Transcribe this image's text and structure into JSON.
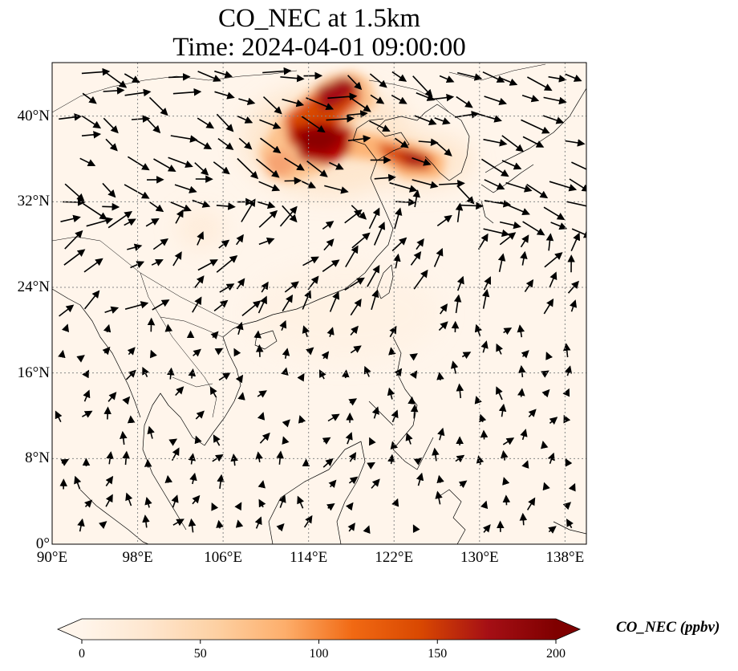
{
  "title": {
    "line1": "CO_NEC at 1.5km",
    "line2": "Time: 2024-04-01 09:00:00"
  },
  "map": {
    "lon_range": [
      90,
      140
    ],
    "lat_range": [
      0,
      45
    ],
    "lon_ticks": [
      {
        "value": 90,
        "label": "90°E"
      },
      {
        "value": 98,
        "label": "98°E"
      },
      {
        "value": 106,
        "label": "106°E"
      },
      {
        "value": 114,
        "label": "114°E"
      },
      {
        "value": 122,
        "label": "122°E"
      },
      {
        "value": 130,
        "label": "130°E"
      },
      {
        "value": 138,
        "label": "138°E"
      }
    ],
    "lat_ticks": [
      {
        "value": 0,
        "label": "0°"
      },
      {
        "value": 8,
        "label": "8°N"
      },
      {
        "value": 16,
        "label": "16°N"
      },
      {
        "value": 24,
        "label": "24°N"
      },
      {
        "value": 32,
        "label": "32°N"
      },
      {
        "value": 40,
        "label": "40°N"
      }
    ],
    "gridlines": true,
    "plume_color_high": "#8b0000",
    "plume_color_low": "#fdd3a4"
  },
  "colorbar": {
    "label": "CO_NEC (ppbv)",
    "min": 0,
    "max": 200,
    "extend": "both",
    "ticks": [
      0,
      50,
      100,
      150,
      200
    ],
    "stops": [
      "#fff5eb",
      "#fee6ce",
      "#fdd0a2",
      "#fdae6b",
      "#f16913",
      "#d94801",
      "#a50f15",
      "#7f0000"
    ]
  }
}
